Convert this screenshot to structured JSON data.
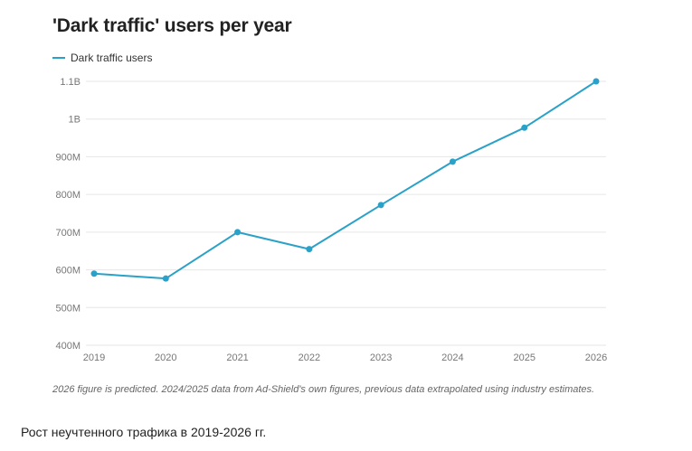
{
  "colors": {
    "series": "#2aa1c8",
    "grid": "#e6e6e6",
    "tick": "#777777"
  },
  "chart_data": {
    "type": "line",
    "title": "'Dark traffic' users per year",
    "xlabel": "",
    "ylabel": "",
    "grid": true,
    "legend_position": "top-left",
    "categories": [
      "2019",
      "2020",
      "2021",
      "2022",
      "2023",
      "2024",
      "2025",
      "2026"
    ],
    "yticks": [
      {
        "value": 400000000,
        "label": "400M"
      },
      {
        "value": 500000000,
        "label": "500M"
      },
      {
        "value": 600000000,
        "label": "600M"
      },
      {
        "value": 700000000,
        "label": "700M"
      },
      {
        "value": 800000000,
        "label": "800M"
      },
      {
        "value": 900000000,
        "label": "900M"
      },
      {
        "value": 1000000000,
        "label": "1B"
      },
      {
        "value": 1100000000,
        "label": "1.1B"
      }
    ],
    "ylim": [
      400000000,
      1100000000
    ],
    "series": [
      {
        "name": "Dark traffic users",
        "values": [
          590000000,
          577000000,
          700000000,
          655000000,
          772000000,
          887000000,
          977000000,
          1100000000
        ]
      }
    ],
    "note": "2026 figure is predicted. 2024/2025 data from Ad-Shield's own figures, previous data extrapolated using industry estimates."
  },
  "caption": "Рост неучтенного трафика в 2019-2026 гг."
}
